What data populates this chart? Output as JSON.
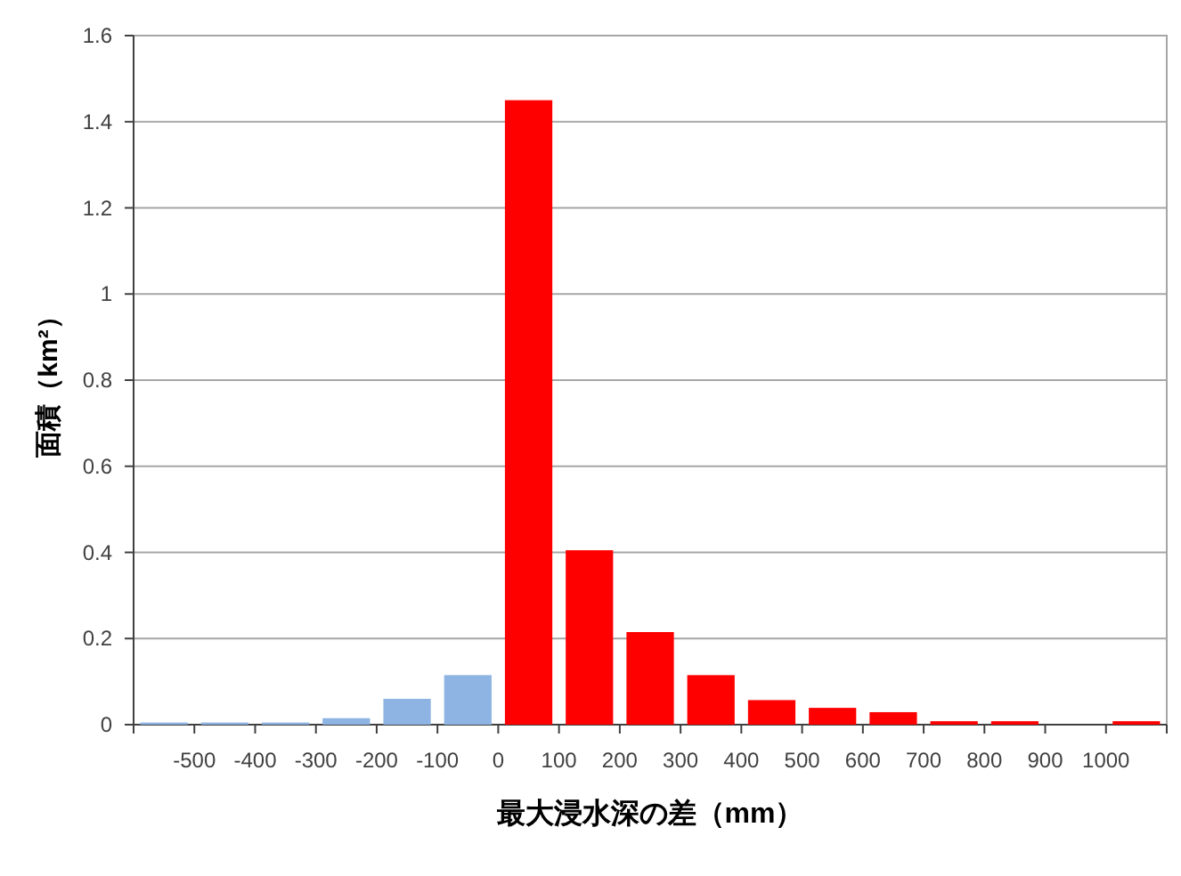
{
  "chart_data": {
    "type": "histogram",
    "xlabel": "最大浸水深の差（mm）",
    "ylabel": "面積（km²）",
    "bins": [
      -600,
      -500,
      -400,
      -300,
      -200,
      -100,
      0,
      100,
      200,
      300,
      400,
      500,
      600,
      700,
      800,
      900,
      1000,
      1100
    ],
    "values": [
      0.005,
      0.005,
      0.005,
      0.015,
      0.06,
      0.115,
      1.45,
      0.405,
      0.215,
      0.115,
      0.057,
      0.039,
      0.029,
      0.008,
      0.008,
      0,
      0.008
    ],
    "colors": [
      "#8db4e2",
      "#8db4e2",
      "#8db4e2",
      "#8db4e2",
      "#8db4e2",
      "#8db4e2",
      "#ff0000",
      "#ff0000",
      "#ff0000",
      "#ff0000",
      "#ff0000",
      "#ff0000",
      "#ff0000",
      "#ff0000",
      "#ff0000",
      "#ff0000",
      "#ff0000"
    ],
    "xlim": [
      -600,
      1100
    ],
    "xticks": [
      {
        "value": -600,
        "label": null
      },
      -500,
      -400,
      -300,
      -200,
      -100,
      0,
      100,
      200,
      300,
      400,
      500,
      600,
      700,
      800,
      900,
      1000,
      {
        "value": 1100,
        "label": null
      }
    ],
    "ylim": [
      0,
      1.6
    ],
    "yticks": [
      0,
      0.2,
      0.4,
      0.6,
      0.8,
      1,
      1.2,
      1.4,
      1.6
    ],
    "grid": "y"
  }
}
